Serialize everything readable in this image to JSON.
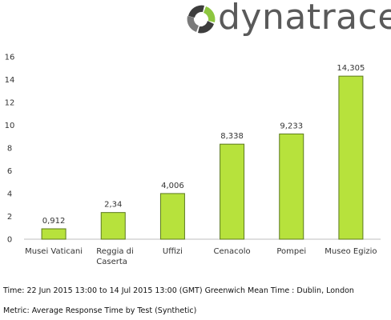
{
  "brand": {
    "name": "dynatrace",
    "logo_icon": "dynatrace-logo-icon",
    "colors": {
      "dark": "#3d3d3d",
      "green": "#8dc63f",
      "gray": "#7a7a7a"
    }
  },
  "chart_data": {
    "type": "bar",
    "categories": [
      "Musei Vaticani",
      "Reggia di Caserta",
      "Uffizi",
      "Cenacolo",
      "Pompei",
      "Museo Egizio"
    ],
    "category_lines": [
      [
        "Musei Vaticani"
      ],
      [
        "Reggia di",
        "Caserta"
      ],
      [
        "Uffizi"
      ],
      [
        "Cenacolo"
      ],
      [
        "Pompei"
      ],
      [
        "Museo Egizio"
      ]
    ],
    "values": [
      0.912,
      2.34,
      4.006,
      8.338,
      9.233,
      14.305
    ],
    "data_labels": [
      "0,912",
      "2,34",
      "4,006",
      "8,338",
      "9,233",
      "14,305"
    ],
    "ylim": [
      0,
      16
    ],
    "yticks": [
      0,
      2,
      4,
      6,
      8,
      10,
      12,
      14,
      16
    ],
    "grid": false,
    "legend": "none",
    "bar_color": "#b7e23c",
    "bar_edge_color": "#5c7a1e"
  },
  "footer": {
    "time": "Time: 22 Jun 2015 13:00 to 14 Jul 2015 13:00 (GMT) Greenwich Mean Time : Dublin, London",
    "metric": "Metric: Average Response Time by Test (Synthetic)"
  }
}
